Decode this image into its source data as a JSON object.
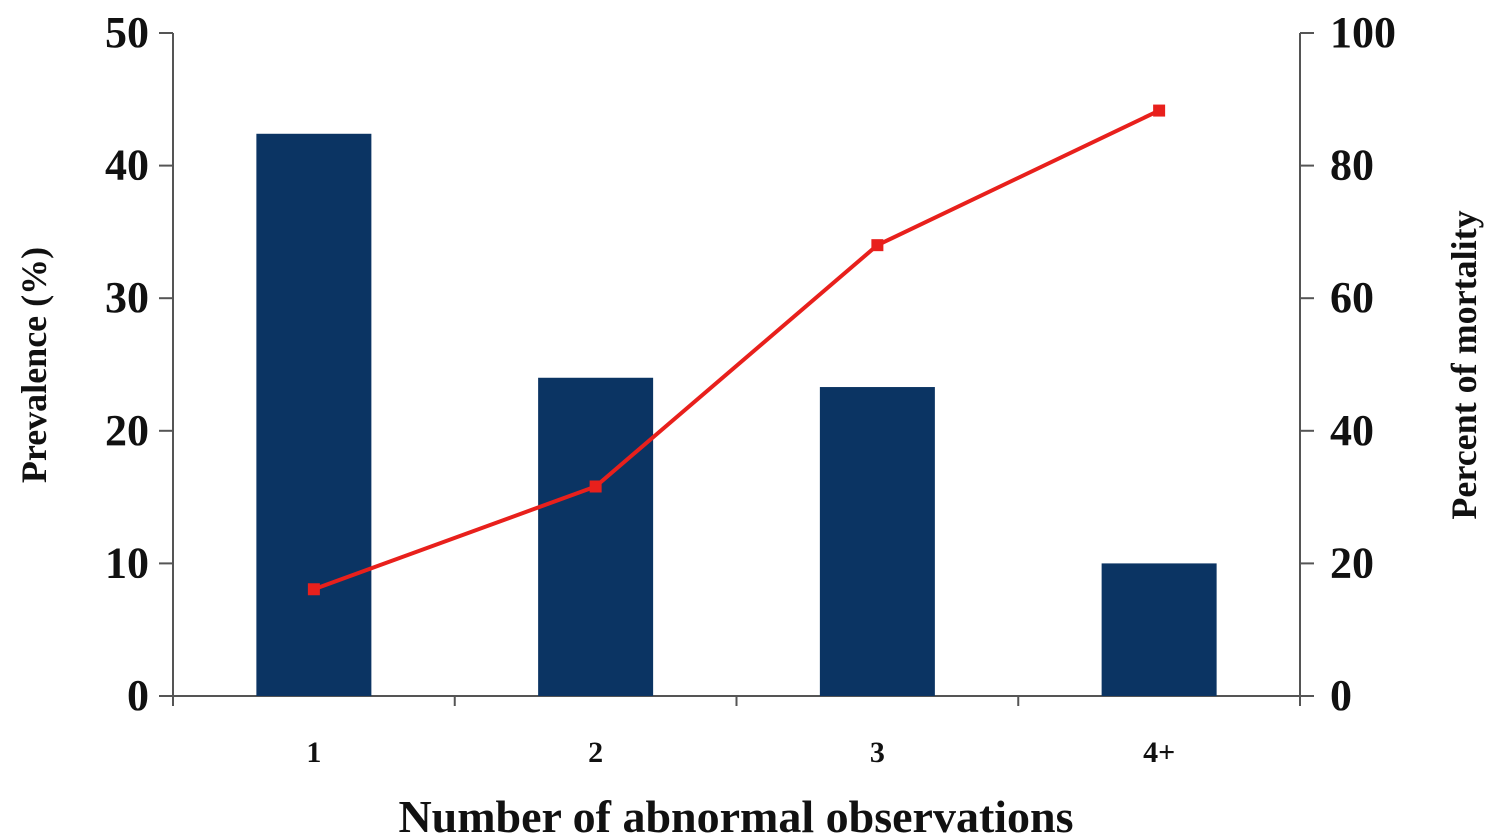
{
  "chart_data": {
    "type": "bar",
    "xlabel": "Number of abnormal observations",
    "ylabel": "Prevalence (%)",
    "y2label": "Percent of mortality",
    "categories": [
      "1",
      "2",
      "3",
      "4+"
    ],
    "ylim": [
      0,
      50
    ],
    "yticks": [
      0,
      10,
      20,
      30,
      40,
      50
    ],
    "y2lim": [
      0,
      100
    ],
    "y2ticks": [
      0,
      20,
      40,
      60,
      80,
      100
    ],
    "grid": false,
    "series": [
      {
        "type": "bar",
        "axis": "left",
        "color": "#0b3463",
        "values": [
          42.4,
          24.0,
          23.3,
          10.0
        ]
      },
      {
        "type": "line",
        "axis": "right",
        "color": "#e8201c",
        "marker": "square",
        "values": [
          16.1,
          31.6,
          68.0,
          88.3
        ]
      }
    ]
  }
}
